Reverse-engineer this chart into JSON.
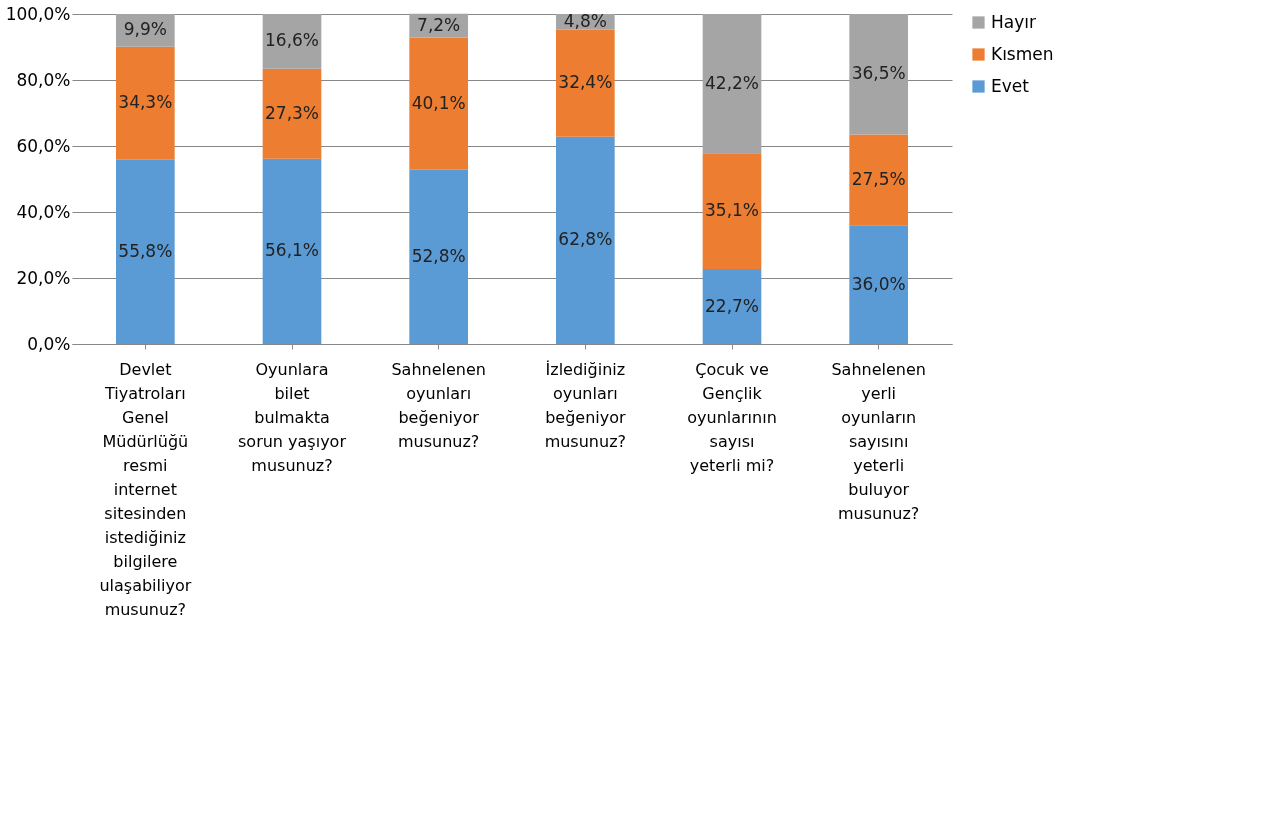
{
  "chart_data": {
    "type": "bar",
    "stacked": true,
    "categories": [
      "Devlet Tiyatroları Genel Müdürlüğü resmi internet sitesinden istediğiniz bilgilere ulaşabiliyor musunuz?",
      "Oyunlara bilet bulmakta sorun yaşıyor musunuz?",
      "Sahnelenen oyunları beğeniyor musunuz?",
      "İzlediğiniz oyunları beğeniyor musunuz?",
      "Çocuk ve Gençlik oyunlarının sayısı yeterli mi?",
      "Sahnelenen yerli oyunların sayısını yeterli buluyor musunuz?"
    ],
    "series": [
      {
        "name": "Evet",
        "color": "#5b9bd5",
        "values": [
          55.8,
          56.1,
          52.8,
          62.8,
          22.7,
          36.0
        ],
        "value_labels": [
          "55,8%",
          "56,1%",
          "52,8%",
          "62,8%",
          "22,7%",
          "36,0%"
        ]
      },
      {
        "name": "Kısmen",
        "color": "#ed7d31",
        "values": [
          34.3,
          27.3,
          40.1,
          32.4,
          35.1,
          27.5
        ],
        "value_labels": [
          "34,3%",
          "27,3%",
          "40,1%",
          "32,4%",
          "35,1%",
          "27,5%"
        ]
      },
      {
        "name": "Hayır",
        "color": "#a5a5a5",
        "values": [
          9.9,
          16.6,
          7.2,
          4.8,
          42.2,
          36.5
        ],
        "value_labels": [
          "9,9%",
          "16,6%",
          "7,2%",
          "4,8%",
          "42,2%",
          "36,5%"
        ]
      }
    ],
    "ylim": [
      0,
      100
    ],
    "yticks": [
      {
        "value": 0,
        "label": "0,0%"
      },
      {
        "value": 20,
        "label": "20,0%"
      },
      {
        "value": 40,
        "label": "40,0%"
      },
      {
        "value": 60,
        "label": "60,0%"
      },
      {
        "value": 80,
        "label": "80,0%"
      },
      {
        "value": 100,
        "label": "100,0%"
      }
    ],
    "grid": "y",
    "legend": "right"
  }
}
